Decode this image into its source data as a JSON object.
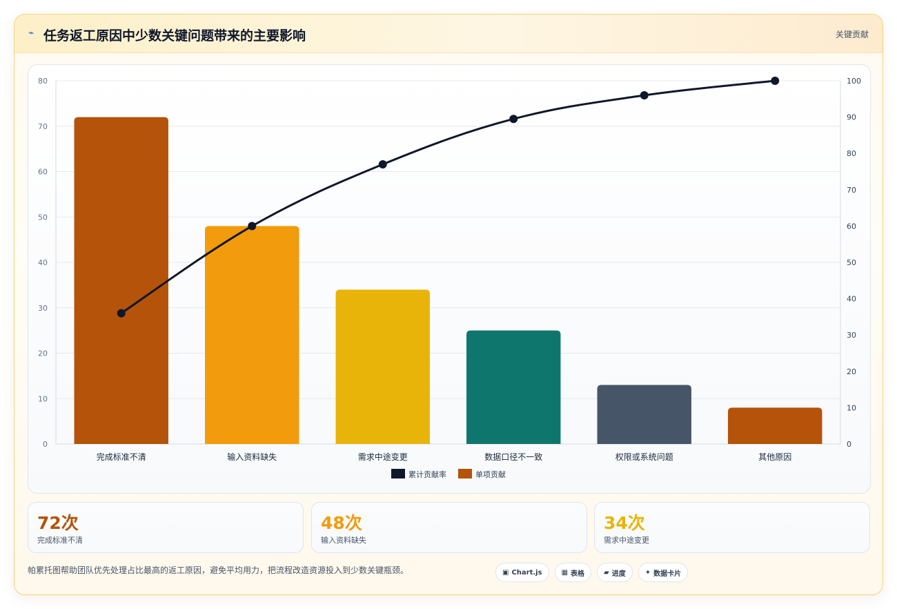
{
  "header": {
    "icon": "lightning-icon",
    "title": "任务返工原因中少数关键问题带来的主要影响",
    "badge": "关键贡献"
  },
  "colors": {
    "line": "#0f172a",
    "bars": [
      "#b45309",
      "#f29b0c",
      "#e8b40a",
      "#0f766e",
      "#475569",
      "#b45309"
    ],
    "legend_bar": "#b45309"
  },
  "chart_data": {
    "type": "bar",
    "categories": [
      "完成标准不清",
      "输入资料缺失",
      "需求中途变更",
      "数据口径不一致",
      "权限或系统问题",
      "其他原因"
    ],
    "series": [
      {
        "name": "单项贡献",
        "type": "bar",
        "axis": "left",
        "values": [
          72,
          48,
          34,
          25,
          13,
          8
        ]
      },
      {
        "name": "累计贡献率",
        "type": "line",
        "axis": "right",
        "values": [
          36,
          60,
          77,
          89.5,
          96,
          100
        ]
      }
    ],
    "left_axis": {
      "ylim": [
        0,
        80
      ],
      "ticks": [
        "0",
        "10",
        "20",
        "30",
        "40",
        "50",
        "60",
        "70",
        "80"
      ]
    },
    "right_axis": {
      "ylim": [
        0,
        100
      ],
      "ticks": [
        "0",
        "10",
        "20",
        "30",
        "40",
        "50",
        "60",
        "70",
        "80",
        "90",
        "100"
      ]
    },
    "legend": [
      {
        "label": "累计贡献率",
        "color": "#0f172a"
      },
      {
        "label": "单项贡献",
        "color": "#b45309"
      }
    ],
    "legend_position": "bottom",
    "grid": true
  },
  "stats": [
    {
      "value": "72次",
      "label": "完成标准不清",
      "color": "#b45309"
    },
    {
      "value": "48次",
      "label": "输入资料缺失",
      "color": "#f29b0c"
    },
    {
      "value": "34次",
      "label": "需求中途变更",
      "color": "#e8b40a"
    }
  ],
  "footer": {
    "text": "帕累托图帮助团队优先处理占比最高的返工原因，避免平均用力，把流程改造资源投入到少数关键瓶颈。",
    "chips": [
      {
        "icon": "window-icon",
        "glyph": "▣",
        "label": "Chart.js"
      },
      {
        "icon": "table-icon",
        "glyph": "▦",
        "label": "表格"
      },
      {
        "icon": "progress-icon",
        "glyph": "▰",
        "label": "进度"
      },
      {
        "icon": "sparkle-icon",
        "glyph": "✦",
        "label": "数据卡片"
      }
    ]
  }
}
